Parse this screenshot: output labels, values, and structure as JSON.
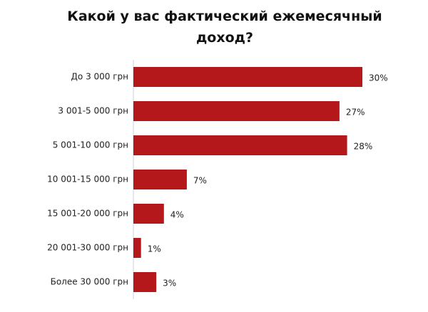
{
  "chart_data": {
    "type": "bar",
    "orientation": "horizontal",
    "title": "Какой у вас фактический  ежемесячный доход?",
    "categories": [
      "До 3 000 грн",
      "3 001-5 000 грн",
      "5 001-10 000 грн",
      "10 001-15 000 грн",
      "15 001-20 000 грн",
      "20 001-30 000 грн",
      "Более 30 000 грн"
    ],
    "values": [
      30,
      27,
      28,
      7,
      4,
      1,
      3
    ],
    "value_labels": [
      "30%",
      "27%",
      "28%",
      "7%",
      "4%",
      "1%",
      "3%"
    ],
    "color": "#b5181b"
  }
}
